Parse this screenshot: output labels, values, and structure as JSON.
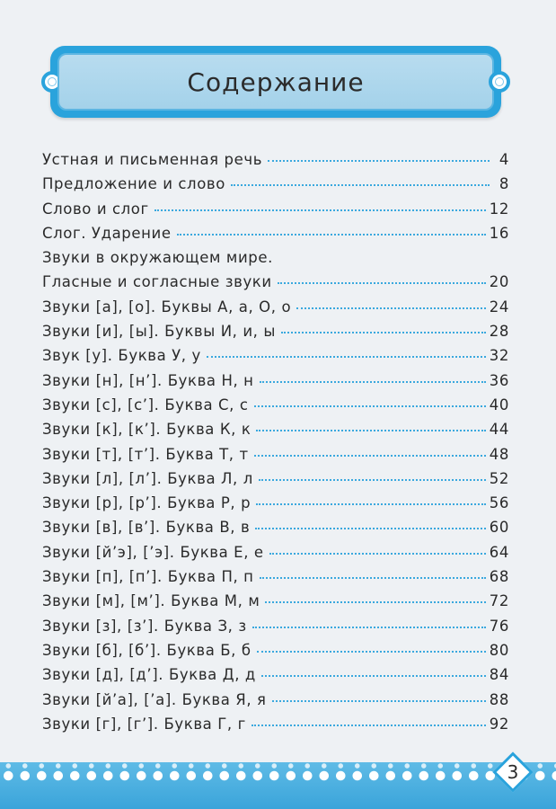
{
  "title": "Содержание",
  "page_number": "3",
  "accent_color": "#2aa3dc",
  "toc": [
    {
      "title": "Устная и письменная речь",
      "page": "4"
    },
    {
      "title": "Предложение и слово",
      "page": "8"
    },
    {
      "title": "Слово и слог",
      "page": "12"
    },
    {
      "title": "Слог. Ударение",
      "page": "16"
    },
    {
      "title": "Звуки в окружающем мире.",
      "page": ""
    },
    {
      "title": "Гласные и согласные звуки",
      "page": "20"
    },
    {
      "title": "Звуки [а], [о]. Буквы А, а, О, о",
      "page": "24"
    },
    {
      "title": "Звуки [и], [ы]. Буквы И, и, ы",
      "page": "28"
    },
    {
      "title": "Звук [у]. Буква У, у",
      "page": "32"
    },
    {
      "title": "Звуки [н], [н’]. Буква Н, н",
      "page": "36"
    },
    {
      "title": "Звуки [с], [с’]. Буква С, с",
      "page": "40"
    },
    {
      "title": "Звуки [к], [к’]. Буква К, к",
      "page": "44"
    },
    {
      "title": "Звуки [т], [т’]. Буква Т, т",
      "page": "48"
    },
    {
      "title": "Звуки [л], [л’]. Буква Л, л",
      "page": "52"
    },
    {
      "title": "Звуки [р], [р’]. Буква Р, р",
      "page": "56"
    },
    {
      "title": "Звуки [в], [в’]. Буква В, в",
      "page": "60"
    },
    {
      "title": "Звуки [й’э], [’э]. Буква Е, е",
      "page": "64"
    },
    {
      "title": "Звуки [п], [п’]. Буква П, п",
      "page": "68"
    },
    {
      "title": "Звуки [м], [м’]. Буква М, м",
      "page": "72"
    },
    {
      "title": "Звуки [з], [з’]. Буква З, з",
      "page": "76"
    },
    {
      "title": "Звуки [б], [б’]. Буква Б, б",
      "page": "80"
    },
    {
      "title": "Звуки [д], [д’]. Буква Д, д",
      "page": "84"
    },
    {
      "title": "Звуки [й’а], [’а]. Буква Я, я",
      "page": "88"
    },
    {
      "title": "Звуки [г], [г’]. Буква Г, г",
      "page": "92"
    }
  ]
}
